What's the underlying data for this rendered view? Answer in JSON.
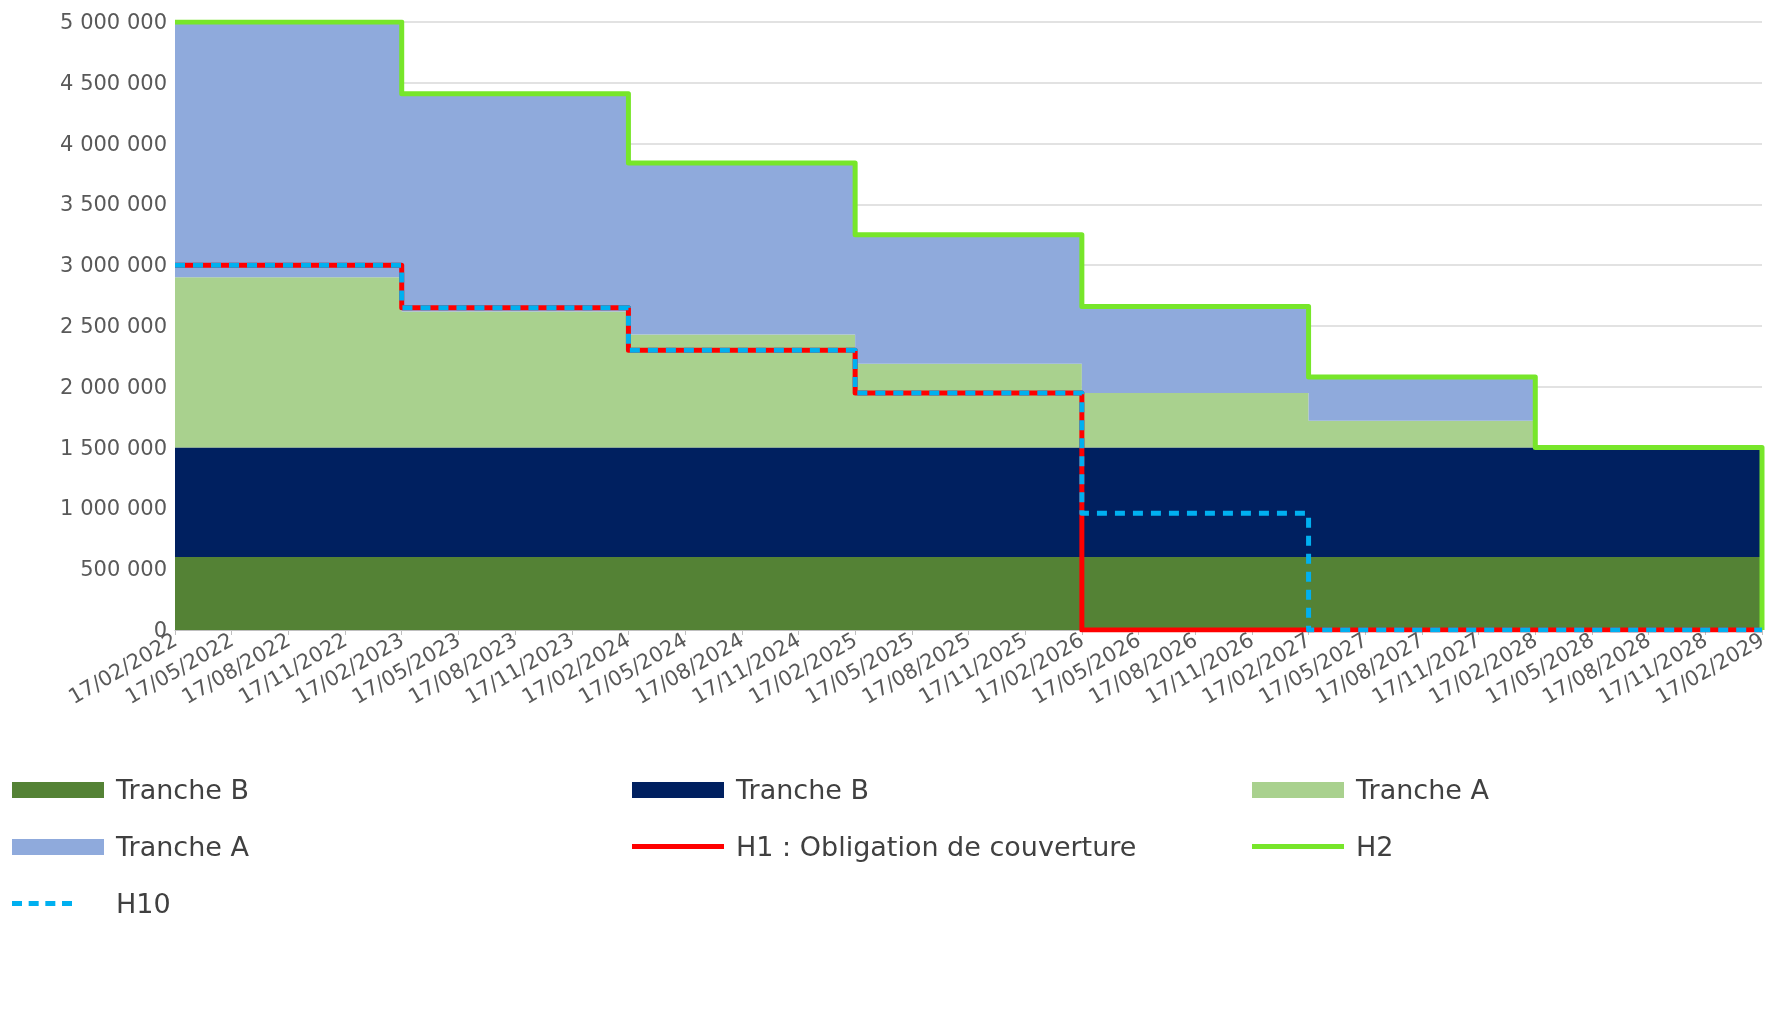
{
  "chart_data": {
    "type": "area",
    "categories": [
      "17/02/2022",
      "17/05/2022",
      "17/08/2022",
      "17/11/2022",
      "17/02/2023",
      "17/05/2023",
      "17/08/2023",
      "17/11/2023",
      "17/02/2024",
      "17/05/2024",
      "17/08/2024",
      "17/11/2024",
      "17/02/2025",
      "17/05/2025",
      "17/08/2025",
      "17/11/2025",
      "17/02/2026",
      "17/05/2026",
      "17/08/2026",
      "17/11/2026",
      "17/02/2027",
      "17/05/2027",
      "17/08/2027",
      "17/11/2027",
      "17/02/2028",
      "17/05/2028",
      "17/08/2028",
      "17/11/2028",
      "17/02/2029"
    ],
    "stacked": true,
    "series": [
      {
        "name": "Tranche B",
        "color": "#548235",
        "values": [
          600000,
          600000,
          600000,
          600000,
          600000,
          600000,
          600000,
          600000,
          600000,
          600000,
          600000,
          600000,
          600000,
          600000,
          600000,
          600000,
          600000,
          600000,
          600000,
          600000,
          600000,
          600000,
          600000,
          600000,
          600000,
          600000,
          600000,
          600000,
          600000
        ]
      },
      {
        "name": "Tranche B",
        "color": "#002060",
        "values": [
          900000,
          900000,
          900000,
          900000,
          900000,
          900000,
          900000,
          900000,
          900000,
          900000,
          900000,
          900000,
          900000,
          900000,
          900000,
          900000,
          900000,
          900000,
          900000,
          900000,
          900000,
          900000,
          900000,
          900000,
          900000,
          900000,
          900000,
          900000,
          900000
        ]
      },
      {
        "name": "Tranche A",
        "color": "#a9d18e",
        "values": [
          1400000,
          1400000,
          1400000,
          1400000,
          1120000,
          1120000,
          1120000,
          1120000,
          930000,
          930000,
          930000,
          930000,
          690000,
          690000,
          690000,
          690000,
          450000,
          450000,
          450000,
          450000,
          220000,
          220000,
          220000,
          220000,
          0,
          0,
          0,
          0,
          0
        ]
      },
      {
        "name": "Tranche A",
        "color": "#8faadc",
        "values": [
          2100000,
          2100000,
          2100000,
          2100000,
          1790000,
          1790000,
          1790000,
          1790000,
          1410000,
          1410000,
          1410000,
          1410000,
          1060000,
          1060000,
          1060000,
          1060000,
          710000,
          710000,
          710000,
          710000,
          360000,
          360000,
          360000,
          360000,
          0,
          0,
          0,
          0,
          0
        ]
      },
      {
        "name": "H1 : Obligation de couverture",
        "type": "step",
        "color": "#ff0000",
        "line_style": "solid",
        "values": [
          3000000,
          3000000,
          3000000,
          3000000,
          2650000,
          2650000,
          2650000,
          2650000,
          2300000,
          2300000,
          2300000,
          2300000,
          1950000,
          1950000,
          1950000,
          1950000,
          0,
          0,
          0,
          0,
          0,
          0,
          0,
          0,
          0,
          0,
          0,
          0,
          0
        ]
      },
      {
        "name": "H2",
        "type": "step",
        "color": "#77e62a",
        "line_style": "solid",
        "values": [
          5000000,
          5000000,
          5000000,
          5000000,
          4410000,
          4410000,
          4410000,
          4410000,
          3840000,
          3840000,
          3840000,
          3840000,
          3250000,
          3250000,
          3250000,
          3250000,
          2660000,
          2660000,
          2660000,
          2660000,
          2080000,
          2080000,
          2080000,
          2080000,
          1500000,
          1500000,
          1500000,
          1500000,
          0
        ]
      },
      {
        "name": "H10",
        "type": "step",
        "color": "#00b0f0",
        "line_style": "dashed",
        "values": [
          3000000,
          3000000,
          3000000,
          3000000,
          2650000,
          2650000,
          2650000,
          2650000,
          2300000,
          2300000,
          2300000,
          2300000,
          1950000,
          1950000,
          1950000,
          1950000,
          960000,
          960000,
          960000,
          960000,
          0,
          0,
          0,
          0,
          0,
          0,
          0,
          0,
          0
        ]
      }
    ],
    "ylim": [
      0,
      5000000
    ],
    "yticks": [
      {
        "value": 0,
        "label": "0"
      },
      {
        "value": 500000,
        "label": "500 000"
      },
      {
        "value": 1000000,
        "label": "1 000 000"
      },
      {
        "value": 1500000,
        "label": "1 500 000"
      },
      {
        "value": 2000000,
        "label": "2 000 000"
      },
      {
        "value": 2500000,
        "label": "2 500 000"
      },
      {
        "value": 3000000,
        "label": "3 000 000"
      },
      {
        "value": 3500000,
        "label": "3 500 000"
      },
      {
        "value": 4000000,
        "label": "4 000 000"
      },
      {
        "value": 4500000,
        "label": "4 500 000"
      },
      {
        "value": 5000000,
        "label": "5 000 000"
      }
    ],
    "grid": "y",
    "legend": "bottom",
    "marker": "none"
  }
}
